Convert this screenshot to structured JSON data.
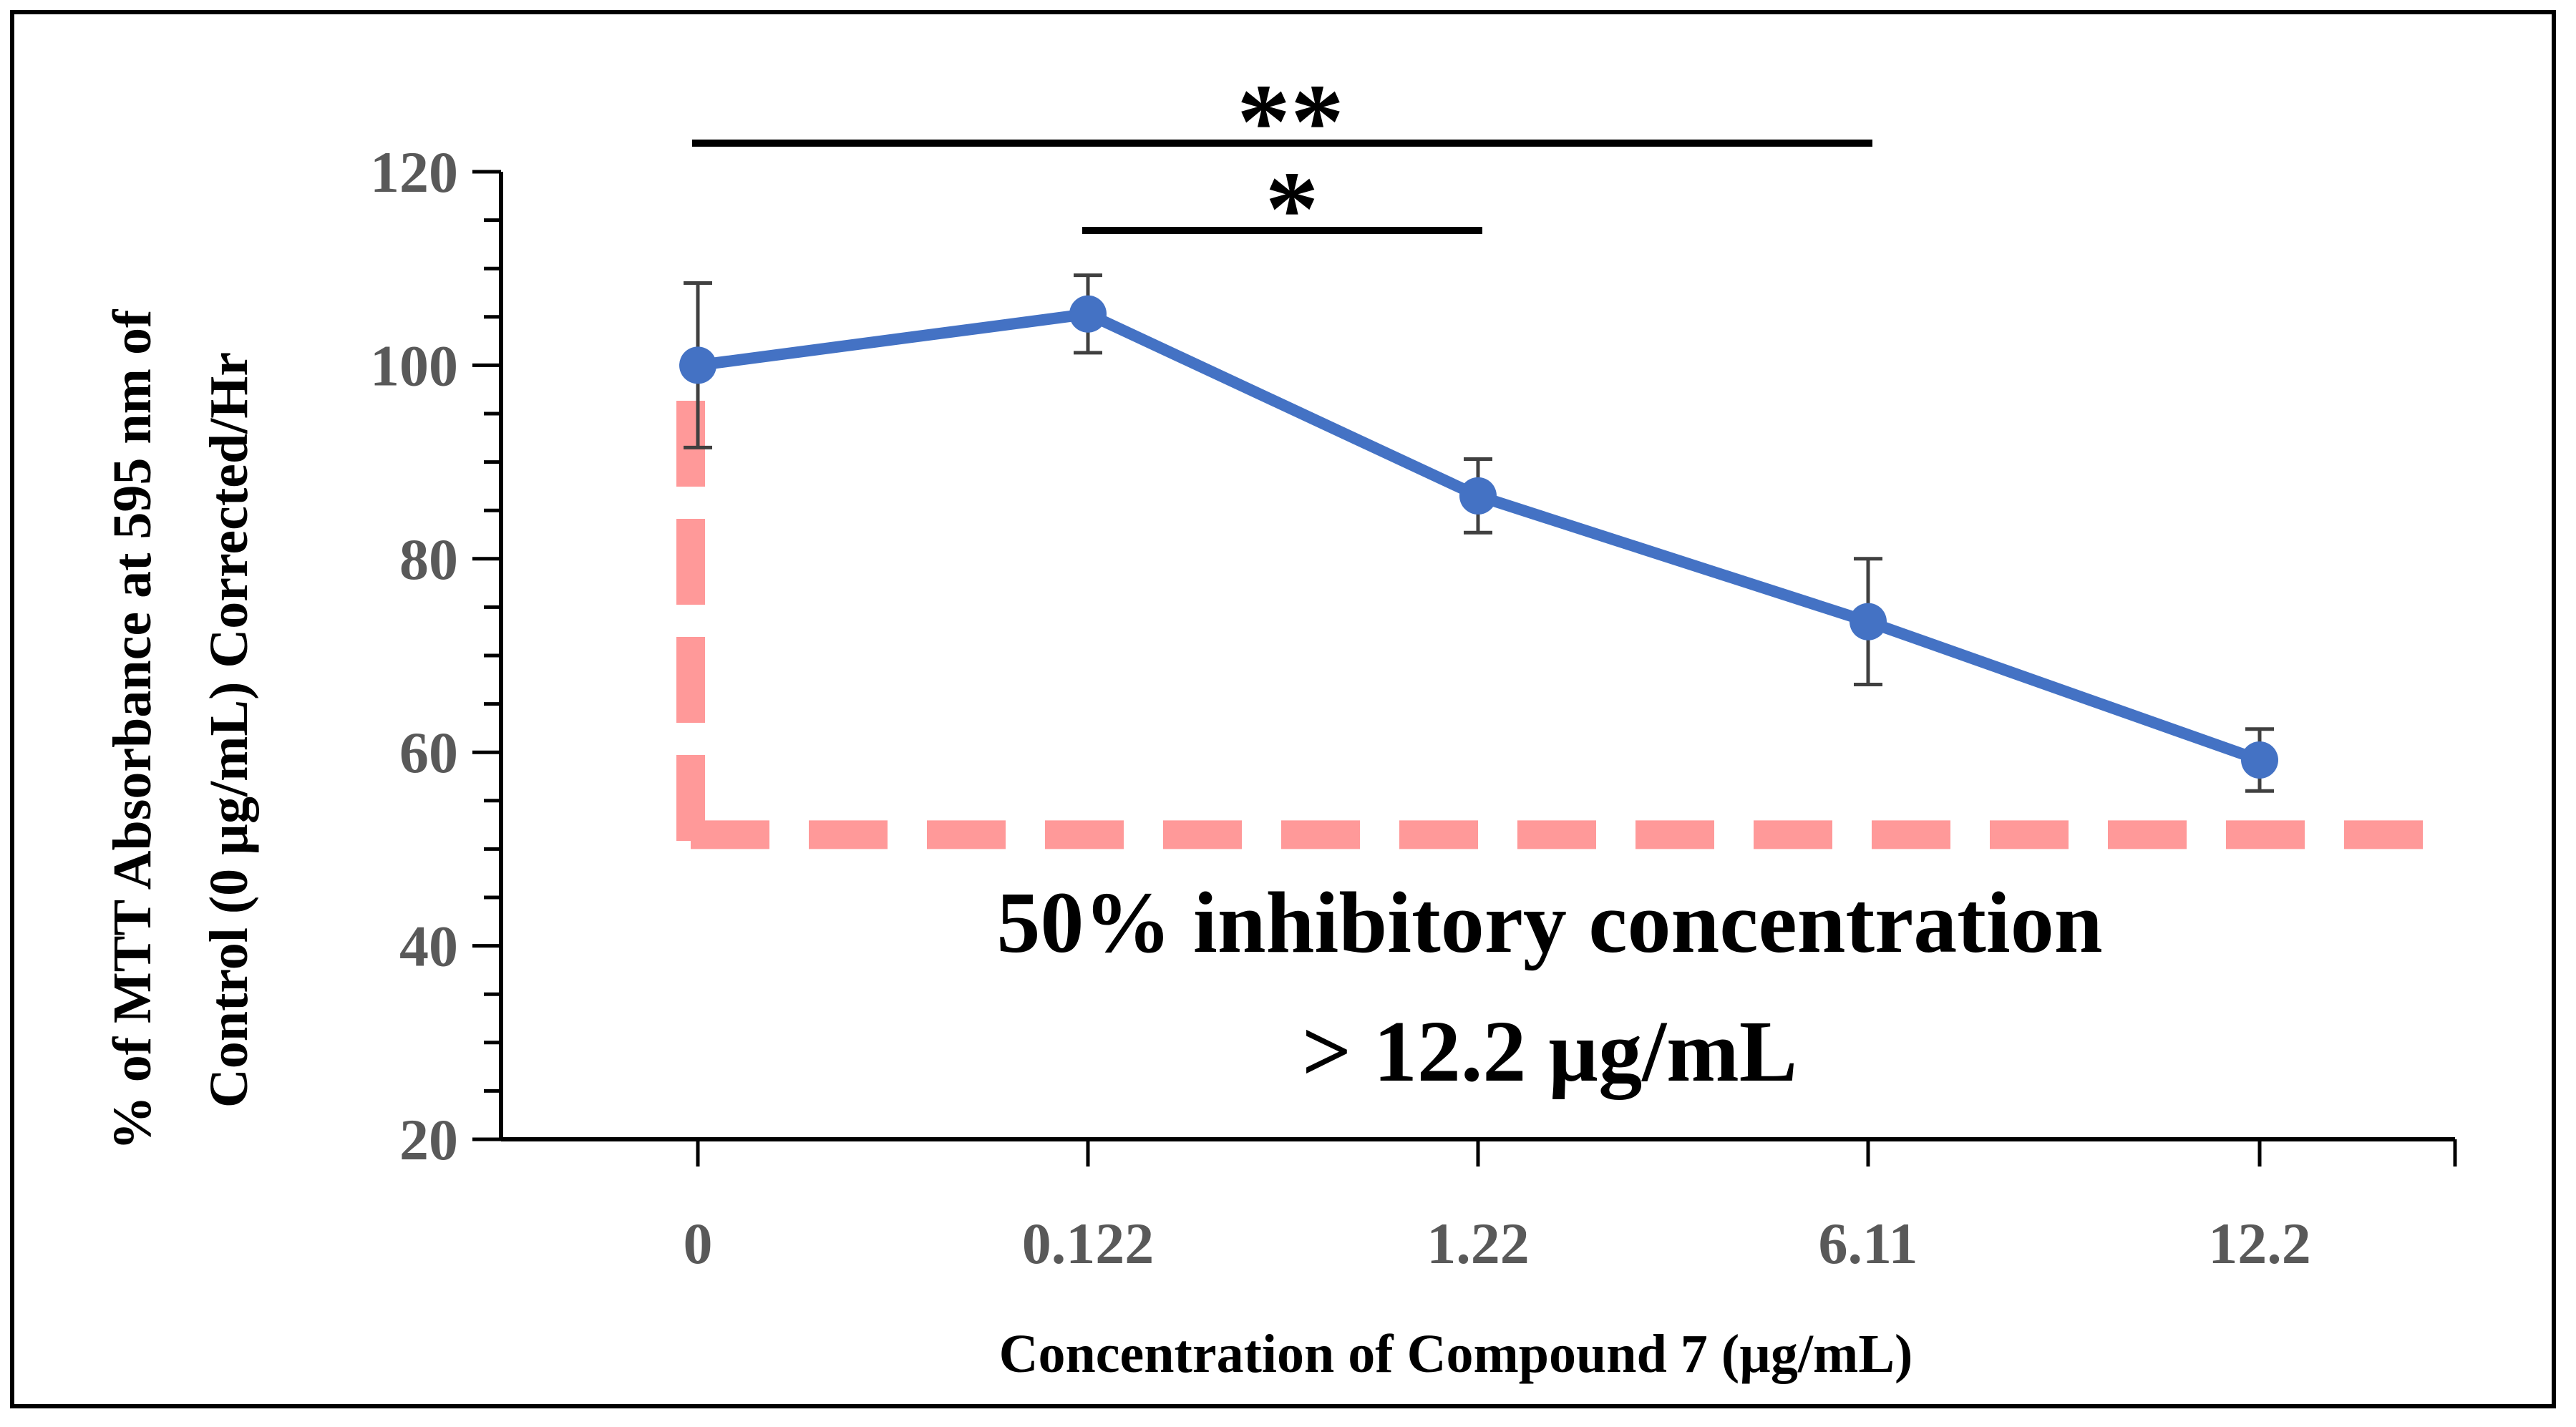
{
  "chart_data": {
    "type": "line",
    "title": "",
    "xlabel": "Concentration of Compound 7 (µg/mL)",
    "ylabel_lines": [
      "% of MTT Absorbance at 595 nm of",
      "Control (0 µg/mL)  Corrected/Hr"
    ],
    "categories": [
      "0",
      "0.122",
      "1.22",
      "6.11",
      "12.2"
    ],
    "series": [
      {
        "name": "Compound 7",
        "values": [
          100,
          105.3,
          86.5,
          73.5,
          59.2
        ],
        "error": [
          8.5,
          4.0,
          3.8,
          6.5,
          3.2
        ],
        "color": "#4472C4"
      }
    ],
    "ylim": [
      20,
      120
    ],
    "yticks": [
      20,
      40,
      60,
      80,
      100,
      120
    ],
    "significance": [
      {
        "label": "**",
        "from": "0",
        "to": "6.11"
      },
      {
        "label": "*",
        "from": "0.122",
        "to": "1.22"
      }
    ],
    "reference_line": {
      "y": 50,
      "color": "#FF9999"
    },
    "annotation": {
      "line1": "50% inhibitory concentration",
      "line2": "> 12.2 µg/mL"
    },
    "colors": {
      "series": "#4472C4",
      "reference": "#FF9999",
      "tick_text": "#595959",
      "axis": "#000000"
    }
  }
}
